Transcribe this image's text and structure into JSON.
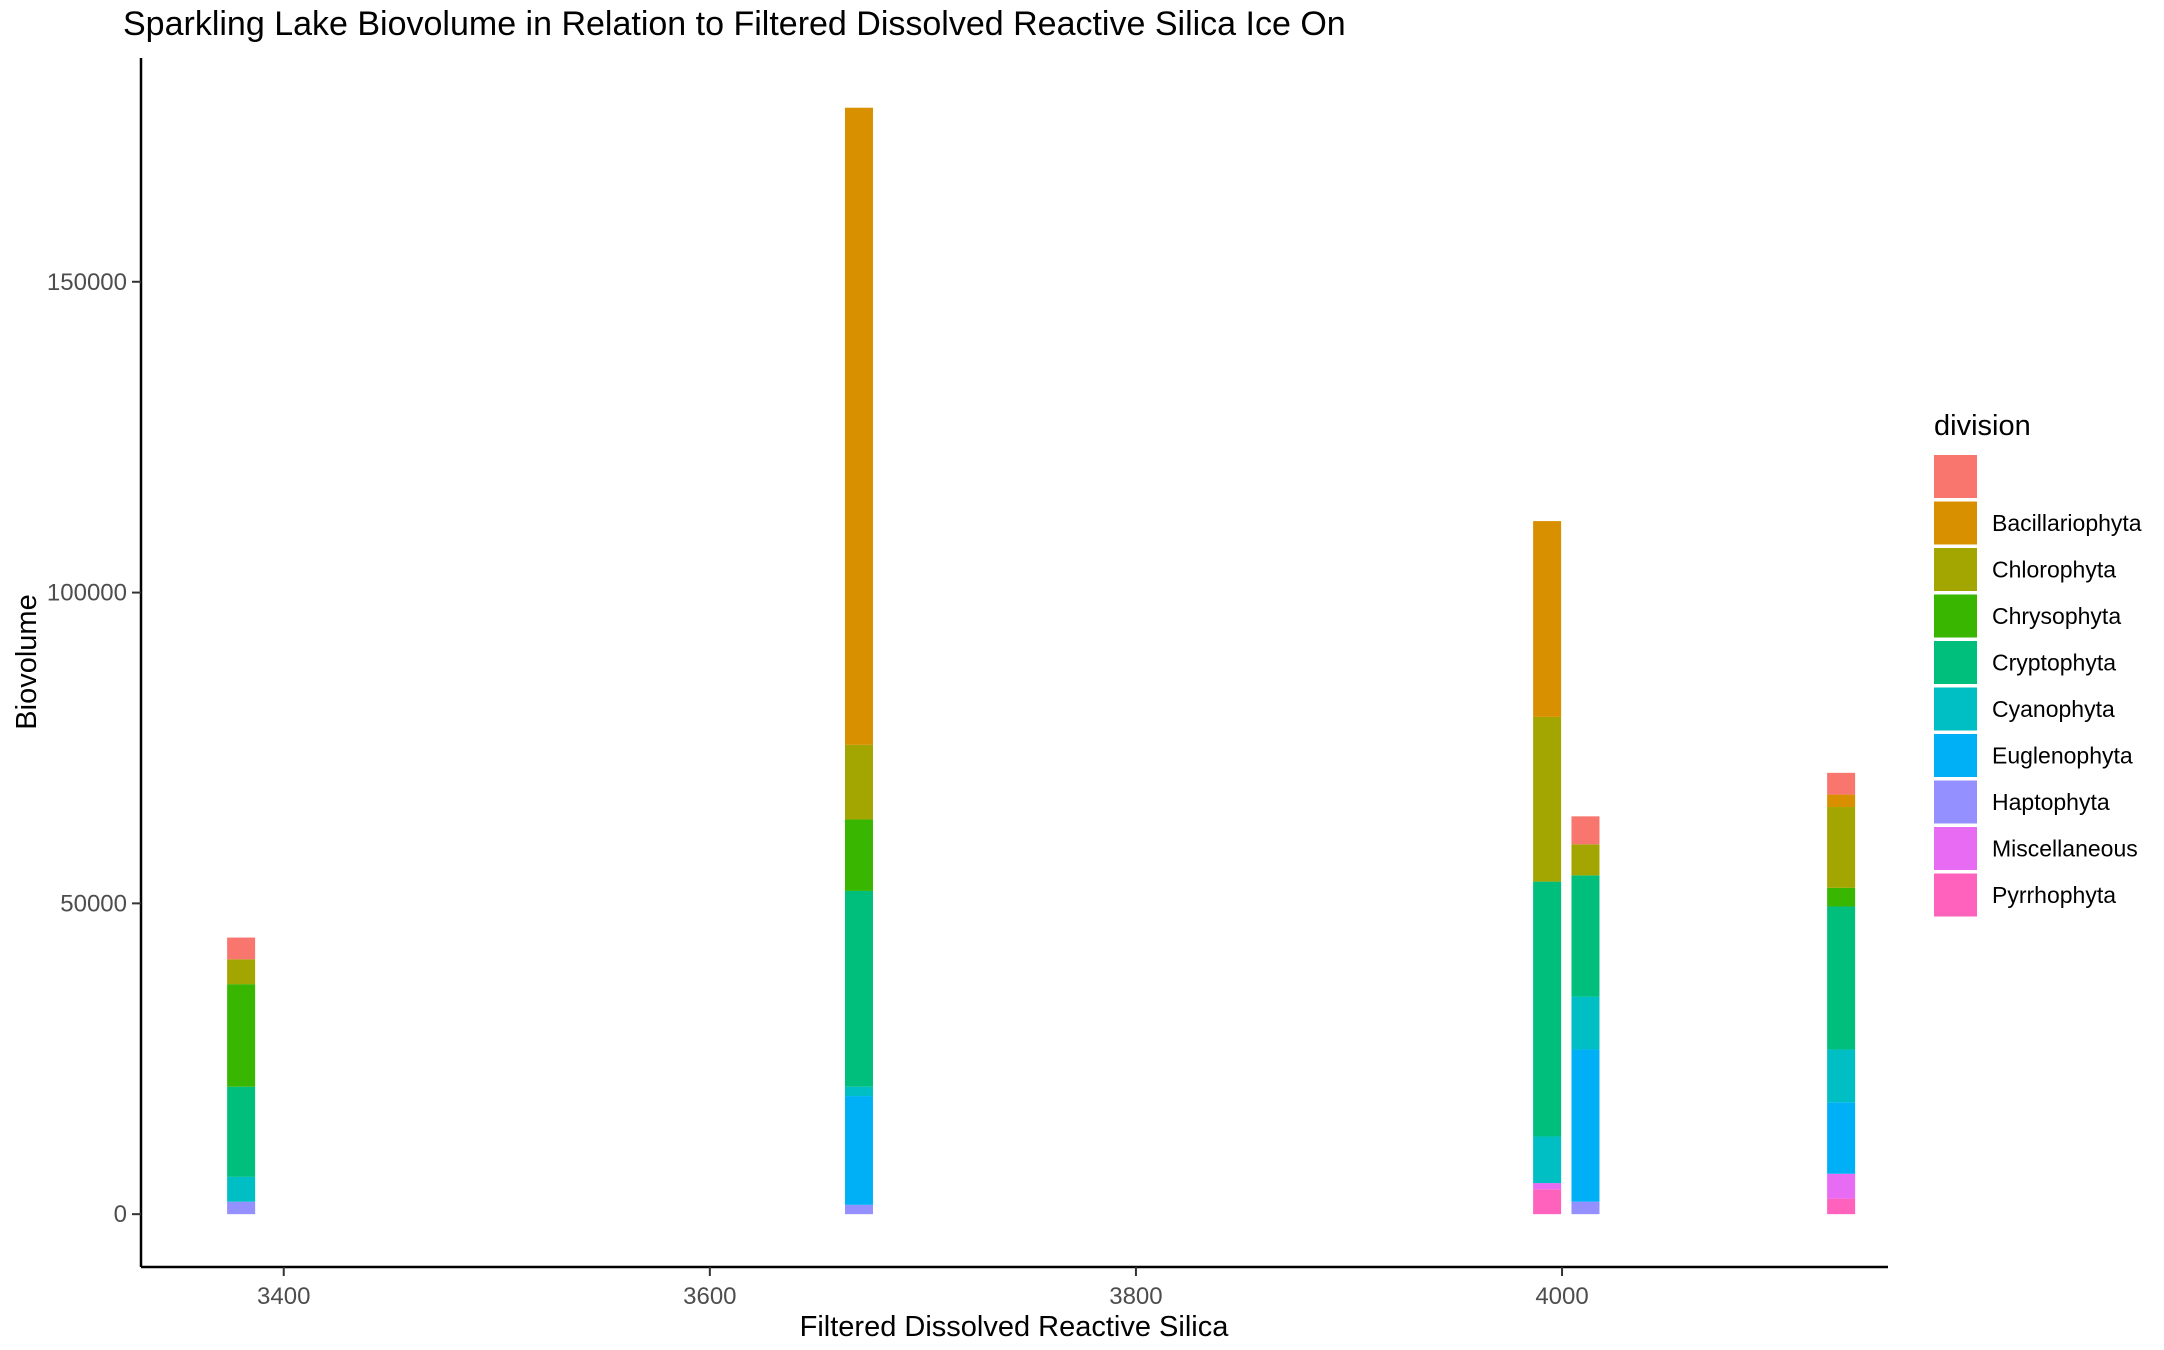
{
  "chart_data": {
    "type": "bar",
    "subtype": "stacked",
    "title": "Sparkling Lake Biovolume in Relation to Filtered Dissolved Reactive Silica Ice On",
    "xlabel": "Filtered Dissolved Reactive Silica",
    "ylabel": "Biovolume",
    "xlim": [
      3333,
      4153
    ],
    "ylim": [
      -8500,
      186000
    ],
    "x_ticks": [
      3400,
      3600,
      3800,
      4000
    ],
    "y_ticks": [
      0,
      50000,
      100000,
      150000
    ],
    "x_tick_labels": [
      "3400",
      "3600",
      "3800",
      "4000"
    ],
    "y_tick_labels": [
      "0",
      "50000",
      "100000",
      "150000"
    ],
    "grid": false,
    "legend": {
      "title": "division",
      "position": "right",
      "entries": [
        {
          "label": "",
          "color": "#F8766D"
        },
        {
          "label": "Bacillariophyta",
          "color": "#D89000"
        },
        {
          "label": "Chlorophyta",
          "color": "#A3A500"
        },
        {
          "label": "Chrysophyta",
          "color": "#39B600"
        },
        {
          "label": "Cryptophyta",
          "color": "#00BF7D"
        },
        {
          "label": "Cyanophyta",
          "color": "#00BFC4"
        },
        {
          "label": "Euglenophyta",
          "color": "#00B0F6"
        },
        {
          "label": "Haptophyta",
          "color": "#9590FF"
        },
        {
          "label": "Miscellaneous",
          "color": "#E76BF3"
        },
        {
          "label": "Pyrrhophyta",
          "color": "#FF62BC"
        }
      ]
    },
    "bar_width": 28,
    "stack_order": [
      "Pyrrhophyta",
      "Miscellaneous",
      "Haptophyta",
      "Euglenophyta",
      "Cyanophyta",
      "Cryptophyta",
      "Chrysophyta",
      "Chlorophyta",
      "Bacillariophyta",
      ""
    ],
    "bars": [
      {
        "x": 3380,
        "segments": [
          {
            "division": "Haptophyta",
            "value": 2000
          },
          {
            "division": "Cyanophyta",
            "value": 4000
          },
          {
            "division": "Cryptophyta",
            "value": 14500
          },
          {
            "division": "Chrysophyta",
            "value": 16500
          },
          {
            "division": "Chlorophyta",
            "value": 4000
          },
          {
            "division": "",
            "value": 3500
          }
        ]
      },
      {
        "x": 3670,
        "segments": [
          {
            "division": "Haptophyta",
            "value": 1500
          },
          {
            "division": "Euglenophyta",
            "value": 17500
          },
          {
            "division": "Cyanophyta",
            "value": 1500
          },
          {
            "division": "Cryptophyta",
            "value": 31500
          },
          {
            "division": "Chrysophyta",
            "value": 11500
          },
          {
            "division": "Chlorophyta",
            "value": 12000
          },
          {
            "division": "Bacillariophyta",
            "value": 102500
          }
        ]
      },
      {
        "x": 3993,
        "segments": [
          {
            "division": "Pyrrhophyta",
            "value": 4000
          },
          {
            "division": "Miscellaneous",
            "value": 1000
          },
          {
            "division": "Cyanophyta",
            "value": 7500
          },
          {
            "division": "Cryptophyta",
            "value": 41000
          },
          {
            "division": "Chlorophyta",
            "value": 26500
          },
          {
            "division": "Bacillariophyta",
            "value": 31500
          }
        ]
      },
      {
        "x": 4011,
        "segments": [
          {
            "division": "Haptophyta",
            "value": 2000
          },
          {
            "division": "Euglenophyta",
            "value": 24500
          },
          {
            "division": "Cyanophyta",
            "value": 8500
          },
          {
            "division": "Cryptophyta",
            "value": 19500
          },
          {
            "division": "Chlorophyta",
            "value": 5000
          },
          {
            "division": "",
            "value": 4500
          }
        ]
      },
      {
        "x": 4131,
        "segments": [
          {
            "division": "Pyrrhophyta",
            "value": 2500
          },
          {
            "division": "Miscellaneous",
            "value": 4000
          },
          {
            "division": "Euglenophyta",
            "value": 11500
          },
          {
            "division": "Cyanophyta",
            "value": 8500
          },
          {
            "division": "Cryptophyta",
            "value": 23000
          },
          {
            "division": "Chrysophyta",
            "value": 3000
          },
          {
            "division": "Chlorophyta",
            "value": 13000
          },
          {
            "division": "Bacillariophyta",
            "value": 2000
          },
          {
            "division": "",
            "value": 3500
          }
        ]
      }
    ]
  }
}
